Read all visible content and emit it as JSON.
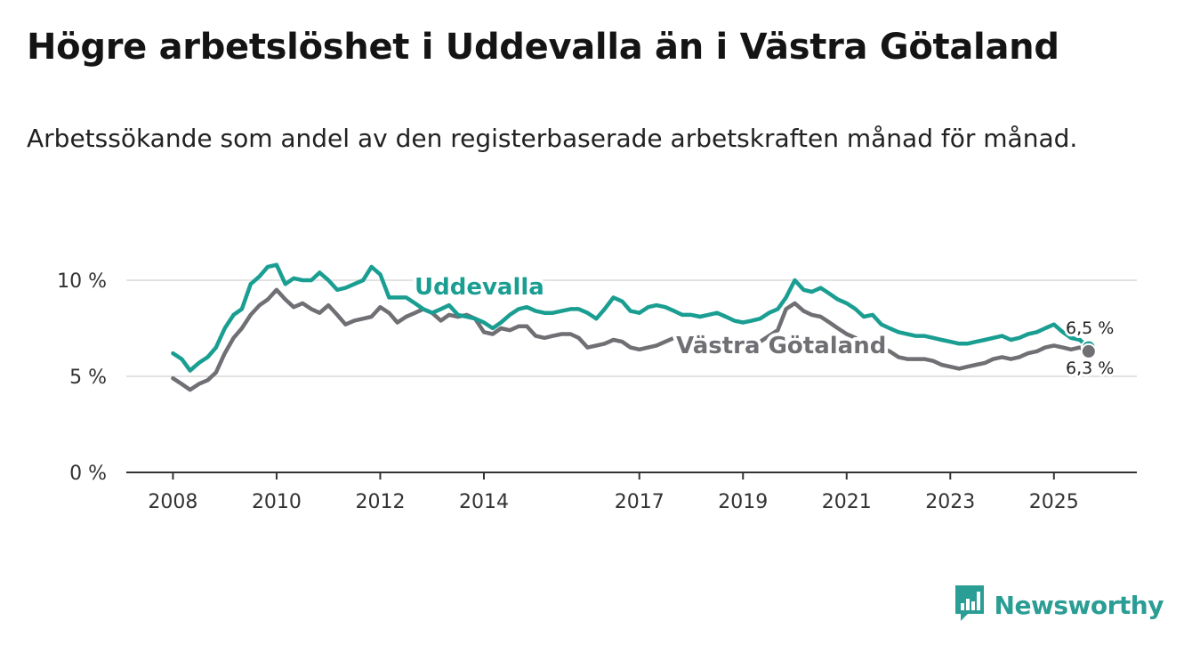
{
  "title": "Högre arbetslöshet i Uddevalla än i Västra Götaland",
  "subtitle": "Arbetssökande som andel av den registerbaserade arbetskraften månad för månad.",
  "brand": {
    "name": "Newsworthy",
    "color": "#2a9d94",
    "icon": "bar-chart-logo-icon"
  },
  "chart_data": {
    "type": "line",
    "ylim": [
      0,
      10
    ],
    "yticks": [
      {
        "value": 0,
        "label": "0 %"
      },
      {
        "value": 5,
        "label": "5 %"
      },
      {
        "value": 10,
        "label": "10 %"
      }
    ],
    "xticks": [
      {
        "value": 2008,
        "label": "2008"
      },
      {
        "value": 2010,
        "label": "2010"
      },
      {
        "value": 2012,
        "label": "2012"
      },
      {
        "value": 2014,
        "label": "2014"
      },
      {
        "value": 2017,
        "label": "2017"
      },
      {
        "value": 2019,
        "label": "2019"
      },
      {
        "value": 2021,
        "label": "2021"
      },
      {
        "value": 2023,
        "label": "2023"
      },
      {
        "value": 2025,
        "label": "2025"
      }
    ],
    "series": [
      {
        "name": "Uddevalla",
        "color": "#1a9e92",
        "end_label": "6,5 %",
        "x": [
          2008.0,
          2008.17,
          2008.33,
          2008.5,
          2008.67,
          2008.83,
          2009.0,
          2009.17,
          2009.33,
          2009.5,
          2009.67,
          2009.83,
          2010.0,
          2010.17,
          2010.33,
          2010.5,
          2010.67,
          2010.83,
          2011.0,
          2011.17,
          2011.33,
          2011.5,
          2011.67,
          2011.83,
          2012.0,
          2012.17,
          2012.33,
          2012.5,
          2012.67,
          2012.83,
          2013.0,
          2013.17,
          2013.33,
          2013.5,
          2013.67,
          2013.83,
          2014.0,
          2014.17,
          2014.33,
          2014.5,
          2014.67,
          2014.83,
          2015.0,
          2015.17,
          2015.33,
          2015.5,
          2015.67,
          2015.83,
          2016.0,
          2016.17,
          2016.33,
          2016.5,
          2016.67,
          2016.83,
          2017.0,
          2017.17,
          2017.33,
          2017.5,
          2017.67,
          2017.83,
          2018.0,
          2018.17,
          2018.33,
          2018.5,
          2018.67,
          2018.83,
          2019.0,
          2019.17,
          2019.33,
          2019.5,
          2019.67,
          2019.83,
          2020.0,
          2020.17,
          2020.33,
          2020.5,
          2020.67,
          2020.83,
          2021.0,
          2021.17,
          2021.33,
          2021.5,
          2021.67,
          2021.83,
          2022.0,
          2022.17,
          2022.33,
          2022.5,
          2022.67,
          2022.83,
          2023.0,
          2023.17,
          2023.33,
          2023.5,
          2023.67,
          2023.83,
          2024.0,
          2024.17,
          2024.33,
          2024.5,
          2024.67,
          2024.83,
          2025.0,
          2025.17,
          2025.33,
          2025.5,
          2025.67
        ],
        "values": [
          6.2,
          5.9,
          5.3,
          5.7,
          6.0,
          6.5,
          7.5,
          8.2,
          8.5,
          9.8,
          10.2,
          10.7,
          10.8,
          9.8,
          10.1,
          10.0,
          10.0,
          10.4,
          10.0,
          9.5,
          9.6,
          9.8,
          10.0,
          10.7,
          10.3,
          9.1,
          9.1,
          9.1,
          8.8,
          8.5,
          8.3,
          8.5,
          8.7,
          8.2,
          8.1,
          8.0,
          7.8,
          7.5,
          7.8,
          8.2,
          8.5,
          8.6,
          8.4,
          8.3,
          8.3,
          8.4,
          8.5,
          8.5,
          8.3,
          8.0,
          8.5,
          9.1,
          8.9,
          8.4,
          8.3,
          8.6,
          8.7,
          8.6,
          8.4,
          8.2,
          8.2,
          8.1,
          8.2,
          8.3,
          8.1,
          7.9,
          7.8,
          7.9,
          8.0,
          8.3,
          8.5,
          9.1,
          10.0,
          9.5,
          9.4,
          9.6,
          9.3,
          9.0,
          8.8,
          8.5,
          8.1,
          8.2,
          7.7,
          7.5,
          7.3,
          7.2,
          7.1,
          7.1,
          7.0,
          6.9,
          6.8,
          6.7,
          6.7,
          6.8,
          6.9,
          7.0,
          7.1,
          6.9,
          7.0,
          7.2,
          7.3,
          7.5,
          7.7,
          7.3,
          7.0,
          6.9,
          6.5
        ]
      },
      {
        "name": "Västra Götaland",
        "color": "#6f6f74",
        "end_label": "6,3 %",
        "x": [
          2008.0,
          2008.17,
          2008.33,
          2008.5,
          2008.67,
          2008.83,
          2009.0,
          2009.17,
          2009.33,
          2009.5,
          2009.67,
          2009.83,
          2010.0,
          2010.17,
          2010.33,
          2010.5,
          2010.67,
          2010.83,
          2011.0,
          2011.17,
          2011.33,
          2011.5,
          2011.67,
          2011.83,
          2012.0,
          2012.17,
          2012.33,
          2012.5,
          2012.67,
          2012.83,
          2013.0,
          2013.17,
          2013.33,
          2013.5,
          2013.67,
          2013.83,
          2014.0,
          2014.17,
          2014.33,
          2014.5,
          2014.67,
          2014.83,
          2015.0,
          2015.17,
          2015.33,
          2015.5,
          2015.67,
          2015.83,
          2016.0,
          2016.17,
          2016.33,
          2016.5,
          2016.67,
          2016.83,
          2017.0,
          2017.17,
          2017.33,
          2017.5,
          2017.67,
          2017.83,
          2018.0,
          2018.17,
          2018.33,
          2018.5,
          2018.67,
          2018.83,
          2019.0,
          2019.17,
          2019.33,
          2019.5,
          2019.67,
          2019.83,
          2020.0,
          2020.17,
          2020.33,
          2020.5,
          2020.67,
          2020.83,
          2021.0,
          2021.17,
          2021.33,
          2021.5,
          2021.67,
          2021.83,
          2022.0,
          2022.17,
          2022.33,
          2022.5,
          2022.67,
          2022.83,
          2023.0,
          2023.17,
          2023.33,
          2023.5,
          2023.67,
          2023.83,
          2024.0,
          2024.17,
          2024.33,
          2024.5,
          2024.67,
          2024.83,
          2025.0,
          2025.17,
          2025.33,
          2025.5,
          2025.67
        ],
        "values": [
          4.9,
          4.6,
          4.3,
          4.6,
          4.8,
          5.2,
          6.2,
          7.0,
          7.5,
          8.2,
          8.7,
          9.0,
          9.5,
          9.0,
          8.6,
          8.8,
          8.5,
          8.3,
          8.7,
          8.2,
          7.7,
          7.9,
          8.0,
          8.1,
          8.6,
          8.3,
          7.8,
          8.1,
          8.3,
          8.5,
          8.3,
          7.9,
          8.2,
          8.1,
          8.2,
          8.0,
          7.3,
          7.2,
          7.5,
          7.4,
          7.6,
          7.6,
          7.1,
          7.0,
          7.1,
          7.2,
          7.2,
          7.0,
          6.5,
          6.6,
          6.7,
          6.9,
          6.8,
          6.5,
          6.4,
          6.5,
          6.6,
          6.8,
          7.0,
          6.9,
          6.9,
          6.8,
          6.8,
          6.8,
          6.7,
          6.6,
          6.5,
          6.6,
          6.8,
          7.1,
          7.4,
          8.5,
          8.8,
          8.4,
          8.2,
          8.1,
          7.8,
          7.5,
          7.2,
          7.0,
          6.7,
          6.6,
          6.5,
          6.3,
          6.0,
          5.9,
          5.9,
          5.9,
          5.8,
          5.6,
          5.5,
          5.4,
          5.5,
          5.6,
          5.7,
          5.9,
          6.0,
          5.9,
          6.0,
          6.2,
          6.3,
          6.5,
          6.6,
          6.5,
          6.4,
          6.5,
          6.3
        ]
      }
    ]
  }
}
